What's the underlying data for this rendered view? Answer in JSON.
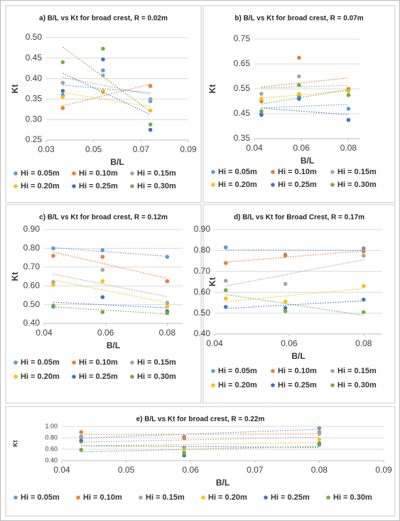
{
  "chart_data": [
    {
      "type": "scatter",
      "title": "a) B/L vs Kt for broad crest, R = 0.02m",
      "xlabel": "B/L",
      "ylabel": "Kt",
      "xlim": [
        0.03,
        0.09
      ],
      "xticks": [
        0.03,
        0.05,
        0.07,
        0.09
      ],
      "ylim": [
        0.25,
        0.5
      ],
      "yticks": [
        0.25,
        {
          "value": 0.3,
          "label": "0.30"
        },
        0.35,
        {
          "value": 0.4,
          "label": "0.40"
        },
        0.45,
        {
          "value": 0.5,
          "label": "0.50"
        }
      ],
      "grid": true,
      "series": [
        {
          "name": "Hi = 0.05m",
          "color": "#5b9bd5",
          "x": [
            0.037,
            0.054,
            0.074
          ],
          "values": [
            0.36,
            0.42,
            0.345
          ]
        },
        {
          "name": "Hi = 0.10m",
          "color": "#ed7d31",
          "x": [
            0.037,
            0.054,
            0.074
          ],
          "values": [
            0.328,
            0.368,
            0.382
          ]
        },
        {
          "name": "Hi = 0.15m",
          "color": "#a5a5a5",
          "x": [
            0.037,
            0.054,
            0.074
          ],
          "values": [
            0.39,
            0.408,
            0.35
          ]
        },
        {
          "name": "Hi = 0.20m",
          "color": "#ffc000",
          "x": [
            0.037,
            0.054,
            0.074
          ],
          "values": [
            0.355,
            0.37,
            0.322
          ]
        },
        {
          "name": "Hi = 0.25m",
          "color": "#4472c4",
          "x": [
            0.037,
            0.054,
            0.074
          ],
          "values": [
            0.37,
            0.447,
            0.275
          ]
        },
        {
          "name": "Hi = 0.30m",
          "color": "#70ad47",
          "x": [
            0.037,
            0.054,
            0.074
          ],
          "values": [
            0.44,
            0.473,
            0.288
          ]
        }
      ]
    },
    {
      "type": "scatter",
      "title": "b) B/L vs Kt for broad crest, R = 0.07m",
      "xlabel": "B/L",
      "ylabel": "Kt",
      "xlim": [
        0.04,
        0.085
      ],
      "xticks": [
        0.04,
        0.06,
        0.08
      ],
      "ylim": [
        0.35,
        0.75
      ],
      "yticks": [
        0.35,
        0.45,
        0.55,
        0.65,
        0.75
      ],
      "grid": true,
      "series": [
        {
          "name": "Hi = 0.05m",
          "color": "#5b9bd5",
          "x": [
            0.043,
            0.059,
            0.08
          ],
          "values": [
            0.45,
            0.52,
            0.47
          ]
        },
        {
          "name": "Hi = 0.10m",
          "color": "#ed7d31",
          "x": [
            0.043,
            0.059,
            0.08
          ],
          "values": [
            0.5,
            0.675,
            0.55
          ]
        },
        {
          "name": "Hi = 0.15m",
          "color": "#a5a5a5",
          "x": [
            0.043,
            0.059,
            0.08
          ],
          "values": [
            0.53,
            0.6,
            0.545
          ]
        },
        {
          "name": "Hi = 0.20m",
          "color": "#ffc000",
          "x": [
            0.043,
            0.059,
            0.08
          ],
          "values": [
            0.51,
            0.53,
            0.54
          ]
        },
        {
          "name": "Hi = 0.25m",
          "color": "#4472c4",
          "x": [
            0.043,
            0.059,
            0.08
          ],
          "values": [
            0.445,
            0.51,
            0.425
          ]
        },
        {
          "name": "Hi = 0.30m",
          "color": "#70ad47",
          "x": [
            0.043,
            0.059,
            0.08
          ],
          "values": [
            0.46,
            0.565,
            0.525
          ]
        }
      ]
    },
    {
      "type": "scatter",
      "title": "c) B/L vs Kt for broad crest, R = 0.12m",
      "xlabel": "B/L",
      "ylabel": "Kt",
      "xlim": [
        0.04,
        0.085
      ],
      "xticks": [
        0.04,
        0.06,
        0.08
      ],
      "ylim": [
        0.4,
        0.9
      ],
      "yticks": [
        {
          "value": 0.4,
          "label": "0.40"
        },
        {
          "value": 0.5,
          "label": "0.50"
        },
        {
          "value": 0.6,
          "label": "0.60"
        },
        {
          "value": 0.7,
          "label": "0.70"
        },
        {
          "value": 0.8,
          "label": "0.80"
        },
        {
          "value": 0.9,
          "label": "0.90"
        }
      ],
      "grid": true,
      "series": [
        {
          "name": "Hi = 0.05m",
          "color": "#5b9bd5",
          "x": [
            0.043,
            0.059,
            0.08
          ],
          "values": [
            0.8,
            0.79,
            0.755
          ]
        },
        {
          "name": "Hi = 0.10m",
          "color": "#ed7d31",
          "x": [
            0.043,
            0.059,
            0.08
          ],
          "values": [
            0.76,
            0.755,
            0.625
          ]
        },
        {
          "name": "Hi = 0.15m",
          "color": "#a5a5a5",
          "x": [
            0.043,
            0.059,
            0.08
          ],
          "values": [
            0.62,
            0.685,
            0.51
          ]
        },
        {
          "name": "Hi = 0.20m",
          "color": "#ffc000",
          "x": [
            0.043,
            0.059,
            0.08
          ],
          "values": [
            0.605,
            0.625,
            0.49
          ]
        },
        {
          "name": "Hi = 0.25m",
          "color": "#4472c4",
          "x": [
            0.043,
            0.059,
            0.08
          ],
          "values": [
            0.49,
            0.54,
            0.465
          ]
        },
        {
          "name": "Hi = 0.30m",
          "color": "#70ad47",
          "x": [
            0.043,
            0.059,
            0.08
          ],
          "values": [
            0.495,
            0.46,
            0.455
          ]
        }
      ]
    },
    {
      "type": "scatter",
      "title": "d) B/L vs Kt for Broad Crest, R = 0.17m",
      "xlabel": "B/L",
      "ylabel": "Kt",
      "xlim": [
        0.04,
        0.085
      ],
      "xticks": [
        0.04,
        0.06,
        0.08
      ],
      "ylim": [
        0.4,
        0.9
      ],
      "yticks": [
        {
          "value": 0.4,
          "label": "0.40"
        },
        {
          "value": 0.5,
          "label": "0.50"
        },
        {
          "value": 0.6,
          "label": "0.60"
        },
        {
          "value": 0.7,
          "label": "0.70"
        },
        {
          "value": 0.8,
          "label": "0.80"
        },
        {
          "value": 0.9,
          "label": "0.90"
        }
      ],
      "grid": true,
      "series": [
        {
          "name": "Hi = 0.05m",
          "color": "#5b9bd5",
          "x": [
            0.043,
            0.059,
            0.08
          ],
          "values": [
            0.815,
            0.78,
            0.81
          ]
        },
        {
          "name": "Hi = 0.10m",
          "color": "#ed7d31",
          "x": [
            0.043,
            0.059,
            0.08
          ],
          "values": [
            0.74,
            0.775,
            0.795
          ]
        },
        {
          "name": "Hi = 0.15m",
          "color": "#a5a5a5",
          "x": [
            0.043,
            0.059,
            0.08
          ],
          "values": [
            0.655,
            0.64,
            0.775
          ]
        },
        {
          "name": "Hi = 0.20m",
          "color": "#ffc000",
          "x": [
            0.043,
            0.059,
            0.08
          ],
          "values": [
            0.57,
            0.555,
            0.63
          ]
        },
        {
          "name": "Hi = 0.25m",
          "color": "#4472c4",
          "x": [
            0.043,
            0.059,
            0.08
          ],
          "values": [
            0.53,
            0.525,
            0.565
          ]
        },
        {
          "name": "Hi = 0.30m",
          "color": "#70ad47",
          "x": [
            0.043,
            0.059,
            0.08
          ],
          "values": [
            0.61,
            0.51,
            0.505
          ]
        }
      ]
    },
    {
      "type": "scatter",
      "title": "e) B/L vs Kt for broad crest, R = 0.22m",
      "xlabel": "B/L",
      "ylabel": "Kt",
      "xlim": [
        0.04,
        0.09
      ],
      "xticks": [
        0.04,
        0.05,
        0.06,
        0.07,
        0.08,
        0.09
      ],
      "ylim": [
        0.4,
        1.0
      ],
      "yticks": [
        {
          "value": 0.4,
          "label": "0.40"
        },
        {
          "value": 0.6,
          "label": "0.60"
        },
        {
          "value": 0.8,
          "label": "0.80"
        },
        {
          "value": 1.0,
          "label": "1.00"
        }
      ],
      "grid": true,
      "series": [
        {
          "name": "Hi = 0.05m",
          "color": "#5b9bd5",
          "x": [
            0.043,
            0.059,
            0.08
          ],
          "values": [
            0.82,
            0.82,
            0.97
          ]
        },
        {
          "name": "Hi = 0.10m",
          "color": "#ed7d31",
          "x": [
            0.043,
            0.059,
            0.08
          ],
          "values": [
            0.9,
            0.79,
            0.9
          ]
        },
        {
          "name": "Hi = 0.15m",
          "color": "#a5a5a5",
          "x": [
            0.043,
            0.059,
            0.08
          ],
          "values": [
            0.8,
            0.63,
            0.87
          ]
        },
        {
          "name": "Hi = 0.20m",
          "color": "#ffc000",
          "x": [
            0.043,
            0.059,
            0.08
          ],
          "values": [
            0.73,
            0.56,
            0.77
          ]
        },
        {
          "name": "Hi = 0.25m",
          "color": "#4472c4",
          "x": [
            0.043,
            0.059,
            0.08
          ],
          "values": [
            0.75,
            0.49,
            0.7
          ]
        },
        {
          "name": "Hi = 0.30m",
          "color": "#70ad47",
          "x": [
            0.043,
            0.059,
            0.08
          ],
          "values": [
            0.59,
            0.53,
            0.68
          ]
        }
      ]
    }
  ]
}
